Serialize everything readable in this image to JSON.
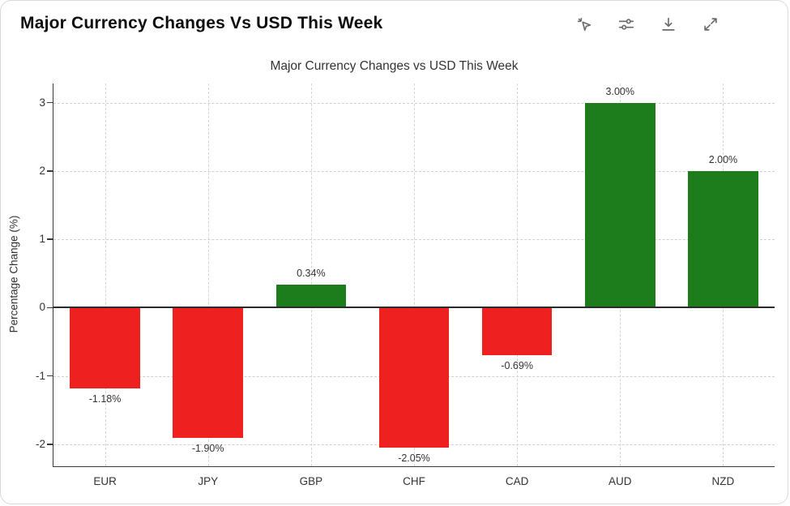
{
  "window": {
    "title": "Major Currency Changes Vs USD This Week"
  },
  "toolbar": {
    "icons": [
      {
        "name": "interactive-mode-icon"
      },
      {
        "name": "adjustments-icon"
      },
      {
        "name": "download-icon"
      },
      {
        "name": "expand-icon"
      }
    ]
  },
  "chart_data": {
    "type": "bar",
    "title": "Major Currency Changes vs USD This Week",
    "xlabel": "",
    "ylabel": "Percentage Change (%)",
    "categories": [
      "EUR",
      "JPY",
      "GBP",
      "CHF",
      "CAD",
      "AUD",
      "NZD"
    ],
    "values": [
      -1.18,
      -1.9,
      0.34,
      -2.05,
      -0.69,
      3.0,
      2.0
    ],
    "value_labels": [
      "-1.18%",
      "-1.90%",
      "0.34%",
      "-2.05%",
      "-0.69%",
      "3.00%",
      "2.00%"
    ],
    "yticks": [
      3,
      2,
      1,
      0,
      -1,
      -2
    ],
    "ylim": [
      -2.32,
      3.28
    ],
    "grid": "dashed",
    "legend": "none",
    "positive_color": "#1d7d1d",
    "negative_color": "#ee2020"
  }
}
